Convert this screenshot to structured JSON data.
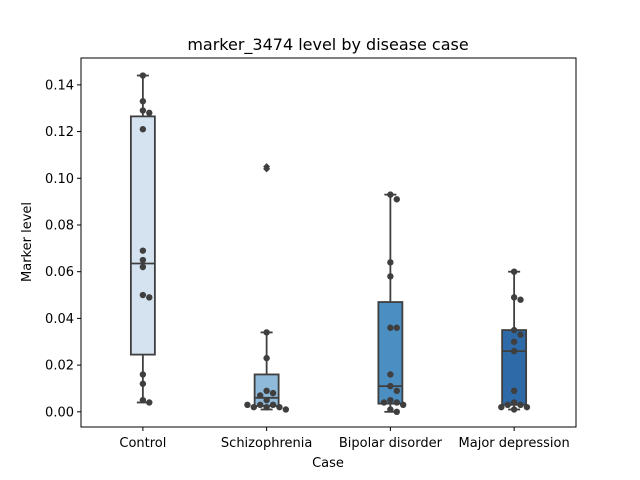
{
  "chart_data": {
    "type": "box",
    "title": "marker_3474 level by disease case",
    "xlabel": "Case",
    "ylabel": "Marker level",
    "ylim": [
      -0.0065,
      0.1515
    ],
    "yticks": [
      0.0,
      0.02,
      0.04,
      0.06,
      0.08,
      0.1,
      0.12,
      0.14
    ],
    "ytick_labels": [
      "0.00",
      "0.02",
      "0.04",
      "0.06",
      "0.08",
      "0.10",
      "0.12",
      "0.14"
    ],
    "grid": false,
    "categories": [
      "Control",
      "Schizophrenia",
      "Bipolar disorder",
      "Major depression"
    ],
    "colors": [
      "#d5e3f1",
      "#8fbad9",
      "#4a8ec2",
      "#2e6aa8"
    ],
    "boxes": [
      {
        "q1": 0.0245,
        "median": 0.0635,
        "q3": 0.1265,
        "whisker_low": 0.004,
        "whisker_high": 0.144,
        "outliers": []
      },
      {
        "q1": 0.0025,
        "median": 0.006,
        "q3": 0.016,
        "whisker_low": 0.001,
        "whisker_high": 0.034,
        "outliers": [
          0.104,
          0.105
        ]
      },
      {
        "q1": 0.0035,
        "median": 0.011,
        "q3": 0.047,
        "whisker_low": 0.0,
        "whisker_high": 0.093,
        "outliers": []
      },
      {
        "q1": 0.003,
        "median": 0.026,
        "q3": 0.035,
        "whisker_low": 0.001,
        "whisker_high": 0.06,
        "outliers": []
      }
    ],
    "points": [
      [
        0.144,
        0.133,
        0.129,
        0.128,
        0.121,
        0.069,
        0.065,
        0.062,
        0.05,
        0.049,
        0.016,
        0.012,
        0.005,
        0.004
      ],
      [
        0.034,
        0.023,
        0.009,
        0.008,
        0.007,
        0.005,
        0.003,
        0.003,
        0.002,
        0.002,
        0.002,
        0.001,
        0.003
      ],
      [
        0.093,
        0.091,
        0.064,
        0.058,
        0.036,
        0.036,
        0.016,
        0.011,
        0.009,
        0.005,
        0.004,
        0.004,
        0.003,
        0.001,
        0.0
      ],
      [
        0.06,
        0.049,
        0.048,
        0.035,
        0.033,
        0.03,
        0.026,
        0.009,
        0.004,
        0.003,
        0.003,
        0.002,
        0.002,
        0.001
      ]
    ]
  }
}
